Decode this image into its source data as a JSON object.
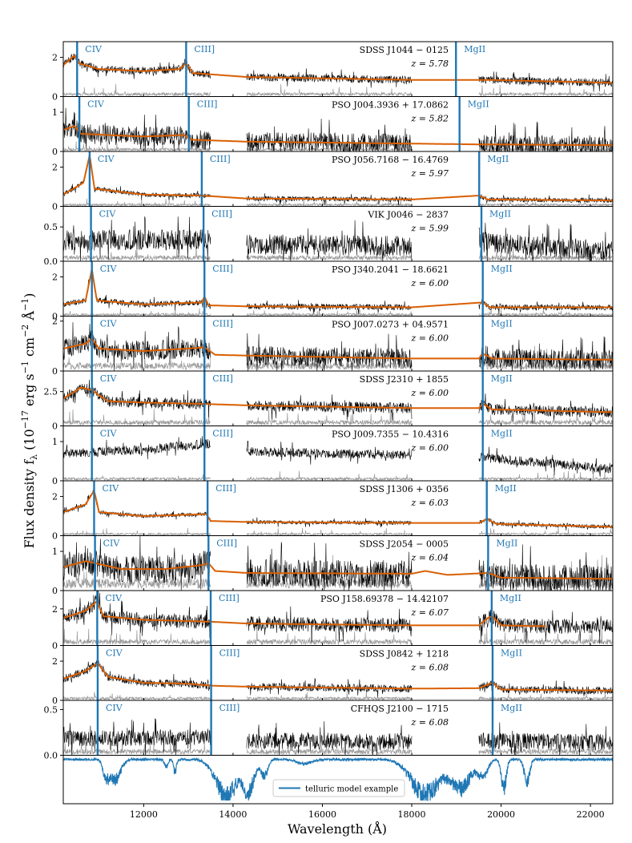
{
  "chart_data": {
    "type": "line",
    "xlabel": "Wavelength (Å)",
    "ylabel": "Flux density f_λ (10^-17 erg s^-1 cm^-2 Å^-1)",
    "ylabel_parts": {
      "main": "Flux density f",
      "sub": "λ",
      "open": " (10",
      "exp1": "−17",
      "mid": " erg s",
      "exp2": "−1",
      "mid2": " cm",
      "exp3": "−2",
      "mid3": " Å",
      "exp4": "−1",
      "close": ")"
    },
    "xlim": [
      10200,
      22500
    ],
    "xticks": [
      12000,
      14000,
      16000,
      18000,
      20000,
      22000
    ],
    "xtick_labels": [
      "12000",
      "14000",
      "16000",
      "18000",
      "20000",
      "22000"
    ],
    "line_names": {
      "civ": "CIV",
      "ciii": "CIII]",
      "mgii": "MgII"
    },
    "rest_wavelengths": {
      "civ": 1549,
      "ciii": 1909,
      "mgii": 2799
    },
    "colors": {
      "spectrum": "#000000",
      "noise": "#999999",
      "model": "#d95f02",
      "lines": "#1f77b4",
      "telluric": "#1f77b4"
    },
    "gap_ranges": [
      [
        13500,
        14300
      ],
      [
        18000,
        19500
      ]
    ],
    "panels": [
      {
        "name": "SDSS J1044 − 0125",
        "z": "z = 5.78",
        "ylim": [
          0,
          2.8
        ],
        "yticks": [
          0,
          2
        ],
        "ytick_labels": [
          "0",
          "2"
        ],
        "civ_x": 10510,
        "ciii_x": 12950,
        "mgii_x": 18990,
        "model": [
          [
            10200,
            1.6
          ],
          [
            10450,
            2.1
          ],
          [
            10550,
            1.7
          ],
          [
            11000,
            1.4
          ],
          [
            12000,
            1.3
          ],
          [
            12800,
            1.4
          ],
          [
            12950,
            1.7
          ],
          [
            13100,
            1.2
          ],
          [
            14300,
            1.0
          ],
          [
            18000,
            0.85
          ],
          [
            19700,
            0.85
          ],
          [
            22500,
            0.7
          ]
        ],
        "noise": 0.2,
        "noise_base": 0.12,
        "model_until": 22500
      },
      {
        "name": "PSO J004.3936 + 17.0862",
        "z": "z = 5.82",
        "ylim": [
          0,
          1.4
        ],
        "yticks": [
          0,
          1
        ],
        "ytick_labels": [
          "0",
          "1"
        ],
        "civ_x": 10560,
        "ciii_x": 13010,
        "mgii_x": 19070,
        "model": [
          [
            10200,
            0.55
          ],
          [
            10450,
            0.65
          ],
          [
            10600,
            0.45
          ],
          [
            12000,
            0.38
          ],
          [
            12900,
            0.42
          ],
          [
            13050,
            0.3
          ],
          [
            14300,
            0.25
          ],
          [
            18000,
            0.2
          ],
          [
            19500,
            0.18
          ],
          [
            22500,
            0.16
          ]
        ],
        "noise": 0.25,
        "noise_base": 0.05,
        "model_until": 22500
      },
      {
        "name": "PSO J056.7168 − 16.4769",
        "z": "z = 5.97",
        "ylim": [
          0,
          2.8
        ],
        "yticks": [
          0,
          2
        ],
        "ytick_labels": [
          "0",
          "2"
        ],
        "civ_x": 10790,
        "ciii_x": 13300,
        "mgii_x": 19510,
        "model": [
          [
            10200,
            0.6
          ],
          [
            10650,
            1.2
          ],
          [
            10790,
            2.6
          ],
          [
            10900,
            0.9
          ],
          [
            12000,
            0.6
          ],
          [
            13300,
            0.55
          ],
          [
            14300,
            0.4
          ],
          [
            18000,
            0.35
          ],
          [
            19510,
            0.55
          ],
          [
            19700,
            0.35
          ],
          [
            22500,
            0.3
          ]
        ],
        "noise": 0.12,
        "noise_base": 0.08,
        "model_until": 22500
      },
      {
        "name": "VIK J0046 − 2837",
        "z": "z = 5.99",
        "ylim": [
          0,
          0.8
        ],
        "yticks": [
          0,
          0.5
        ],
        "ytick_labels": [
          "0.0",
          "0.5"
        ],
        "civ_x": 10820,
        "ciii_x": 13340,
        "mgii_x": 19560,
        "model": [],
        "spectrum_level": [
          [
            10200,
            0.3
          ],
          [
            13500,
            0.32
          ],
          [
            14300,
            0.25
          ],
          [
            18000,
            0.22
          ],
          [
            19500,
            0.28
          ],
          [
            22500,
            0.15
          ]
        ],
        "noise": 0.15,
        "noise_base": 0.05,
        "model_until": 0
      },
      {
        "name": "PSO J340.2041 − 18.6621",
        "z": "z = 6.00",
        "ylim": [
          0,
          2.8
        ],
        "yticks": [
          0,
          2
        ],
        "ytick_labels": [
          "0",
          "2"
        ],
        "civ_x": 10840,
        "ciii_x": 13360,
        "mgii_x": 19590,
        "model": [
          [
            10200,
            0.6
          ],
          [
            10700,
            0.8
          ],
          [
            10840,
            2.4
          ],
          [
            10950,
            0.8
          ],
          [
            12000,
            0.6
          ],
          [
            13300,
            0.7
          ],
          [
            13360,
            1.0
          ],
          [
            13450,
            0.55
          ],
          [
            14300,
            0.5
          ],
          [
            18000,
            0.45
          ],
          [
            19590,
            0.7
          ],
          [
            19750,
            0.45
          ],
          [
            22500,
            0.45
          ]
        ],
        "noise": 0.15,
        "noise_base": 0.08,
        "model_until": 22500
      },
      {
        "name": "PSO J007.0273 + 04.9571",
        "z": "z = 6.00",
        "ylim": [
          0,
          2.2
        ],
        "yticks": [
          0,
          2
        ],
        "ytick_labels": [
          "0",
          "2"
        ],
        "civ_x": 10840,
        "ciii_x": 13360,
        "mgii_x": 19590,
        "model": [
          [
            10200,
            0.9
          ],
          [
            10700,
            1.1
          ],
          [
            10840,
            1.3
          ],
          [
            11000,
            0.9
          ],
          [
            12000,
            0.8
          ],
          [
            13000,
            0.9
          ],
          [
            13360,
            0.95
          ],
          [
            13600,
            0.65
          ],
          [
            14300,
            0.62
          ],
          [
            18000,
            0.5
          ],
          [
            19500,
            0.5
          ],
          [
            19590,
            0.7
          ],
          [
            19800,
            0.5
          ],
          [
            22500,
            0.45
          ]
        ],
        "noise": 0.4,
        "noise_base": 0.2,
        "model_until": 22500
      },
      {
        "name": "SDSS J2310 + 1855",
        "z": "z = 6.00",
        "ylim": [
          0,
          4.0
        ],
        "yticks": [
          0,
          2.5
        ],
        "ytick_labels": [
          "0",
          "2.5"
        ],
        "civ_x": 10840,
        "ciii_x": 13360,
        "mgii_x": 19590,
        "model": [
          [
            10200,
            2.0
          ],
          [
            10600,
            2.8
          ],
          [
            10840,
            2.6
          ],
          [
            11200,
            1.8
          ],
          [
            12000,
            1.7
          ],
          [
            13360,
            1.6
          ],
          [
            14300,
            1.5
          ],
          [
            18000,
            1.3
          ],
          [
            19500,
            1.3
          ],
          [
            19590,
            1.6
          ],
          [
            19800,
            1.2
          ],
          [
            22500,
            1.0
          ]
        ],
        "noise": 0.4,
        "noise_base": 0.25,
        "model_until": 22500
      },
      {
        "name": "PSO J009.7355 − 10.4316",
        "z": "z = 6.00",
        "ylim": [
          0,
          1.4
        ],
        "yticks": [
          0,
          1
        ],
        "ytick_labels": [
          "0",
          "1"
        ],
        "civ_x": 10840,
        "ciii_x": 13360,
        "mgii_x": 19590,
        "model": [],
        "spectrum_level": [
          [
            10200,
            0.7
          ],
          [
            12000,
            0.8
          ],
          [
            13500,
            0.95
          ],
          [
            14300,
            0.75
          ],
          [
            18000,
            0.65
          ],
          [
            19500,
            0.6
          ],
          [
            22500,
            0.3
          ]
        ],
        "noise": 0.12,
        "noise_base": 0.05,
        "model_until": 0
      },
      {
        "name": "SDSS J1306 + 0356",
        "z": "z = 6.03",
        "ylim": [
          0,
          2.8
        ],
        "yticks": [
          0,
          2
        ],
        "ytick_labels": [
          "0",
          "2"
        ],
        "civ_x": 10890,
        "ciii_x": 13430,
        "mgii_x": 19680,
        "model": [
          [
            10200,
            1.2
          ],
          [
            10700,
            1.6
          ],
          [
            10890,
            2.3
          ],
          [
            11000,
            1.2
          ],
          [
            12000,
            1.0
          ],
          [
            13400,
            1.1
          ],
          [
            13500,
            0.75
          ],
          [
            14300,
            0.7
          ],
          [
            18000,
            0.65
          ],
          [
            19500,
            0.65
          ],
          [
            19680,
            0.85
          ],
          [
            19900,
            0.6
          ],
          [
            22500,
            0.45
          ]
        ],
        "noise": 0.1,
        "noise_base": 0.08,
        "model_until": 22500
      },
      {
        "name": "SDSS J2054 − 0005",
        "z": "z = 6.04",
        "ylim": [
          0,
          1.4
        ],
        "yticks": [
          0,
          1
        ],
        "ytick_labels": [
          "0",
          "1"
        ],
        "civ_x": 10910,
        "ciii_x": 13450,
        "mgii_x": 19710,
        "model": [
          [
            10200,
            0.6
          ],
          [
            10700,
            0.75
          ],
          [
            10910,
            0.7
          ],
          [
            11500,
            0.55
          ],
          [
            12500,
            0.55
          ],
          [
            13300,
            0.65
          ],
          [
            13450,
            0.7
          ],
          [
            13600,
            0.5
          ],
          [
            14300,
            0.45
          ],
          [
            18000,
            0.43
          ],
          [
            18300,
            0.5
          ],
          [
            18800,
            0.4
          ],
          [
            19710,
            0.45
          ],
          [
            20000,
            0.33
          ],
          [
            22500,
            0.3
          ]
        ],
        "noise": 0.35,
        "noise_base": 0.18,
        "model_until": 22500
      },
      {
        "name": "PSO J158.69378 − 14.42107",
        "z": "z = 6.07",
        "ylim": [
          0,
          3.0
        ],
        "yticks": [
          0,
          2
        ],
        "ytick_labels": [
          "0",
          "2"
        ],
        "civ_x": 10960,
        "ciii_x": 13500,
        "mgii_x": 19790,
        "model": [
          [
            10200,
            1.5
          ],
          [
            10700,
            1.9
          ],
          [
            10950,
            2.4
          ],
          [
            11100,
            1.6
          ],
          [
            12000,
            1.4
          ],
          [
            13500,
            1.3
          ],
          [
            14300,
            1.2
          ],
          [
            18000,
            1.1
          ],
          [
            19500,
            1.1
          ],
          [
            19700,
            1.5
          ],
          [
            19800,
            1.6
          ],
          [
            20000,
            1.1
          ],
          [
            21000,
            1.05
          ]
        ],
        "noise": 0.4,
        "noise_base": 0.2,
        "model_until": 21000
      },
      {
        "name": "SDSS J0842 + 1218",
        "z": "z = 6.08",
        "ylim": [
          0,
          2.8
        ],
        "yticks": [
          0,
          2
        ],
        "ytick_labels": [
          "0",
          "2"
        ],
        "civ_x": 10970,
        "ciii_x": 13510,
        "mgii_x": 19810,
        "model": [
          [
            10200,
            1.1
          ],
          [
            10700,
            1.5
          ],
          [
            10970,
            1.9
          ],
          [
            11200,
            1.2
          ],
          [
            12000,
            0.9
          ],
          [
            13000,
            0.85
          ],
          [
            13500,
            0.75
          ],
          [
            14300,
            0.7
          ],
          [
            18000,
            0.6
          ],
          [
            19500,
            0.62
          ],
          [
            19810,
            0.9
          ],
          [
            20000,
            0.55
          ],
          [
            22500,
            0.5
          ]
        ],
        "noise": 0.2,
        "noise_base": 0.1,
        "model_until": 22500
      },
      {
        "name": "CFHQS J2100 − 1715",
        "z": "z = 6.08",
        "ylim": [
          0,
          0.6
        ],
        "yticks": [
          0,
          0.5
        ],
        "ytick_labels": [
          "0.0",
          "0.5"
        ],
        "civ_x": 10970,
        "ciii_x": 13510,
        "mgii_x": 19810,
        "model": [],
        "spectrum_level": [
          [
            10200,
            0.18
          ],
          [
            13500,
            0.2
          ],
          [
            14300,
            0.16
          ],
          [
            18000,
            0.15
          ],
          [
            19500,
            0.16
          ],
          [
            22500,
            0.14
          ]
        ],
        "noise": 0.09,
        "noise_base": 0.04,
        "model_until": 0
      }
    ],
    "telluric": {
      "legend": "telluric model example",
      "absorptions": [
        {
          "center": 11350,
          "width": 250,
          "depth": 0.55
        },
        {
          "center": 11150,
          "width": 120,
          "depth": 0.4
        },
        {
          "center": 12700,
          "width": 60,
          "depth": 0.35
        },
        {
          "center": 12500,
          "width": 80,
          "depth": 0.2
        },
        {
          "center": 13850,
          "width": 450,
          "depth": 1.0
        },
        {
          "center": 14350,
          "width": 250,
          "depth": 0.8
        },
        {
          "center": 14700,
          "width": 150,
          "depth": 0.45
        },
        {
          "center": 15600,
          "width": 300,
          "depth": 0.12
        },
        {
          "center": 18300,
          "width": 600,
          "depth": 0.95
        },
        {
          "center": 19100,
          "width": 450,
          "depth": 0.75
        },
        {
          "center": 19600,
          "width": 200,
          "depth": 0.45
        },
        {
          "center": 20060,
          "width": 110,
          "depth": 0.8
        },
        {
          "center": 20580,
          "width": 120,
          "depth": 0.6
        }
      ]
    }
  }
}
